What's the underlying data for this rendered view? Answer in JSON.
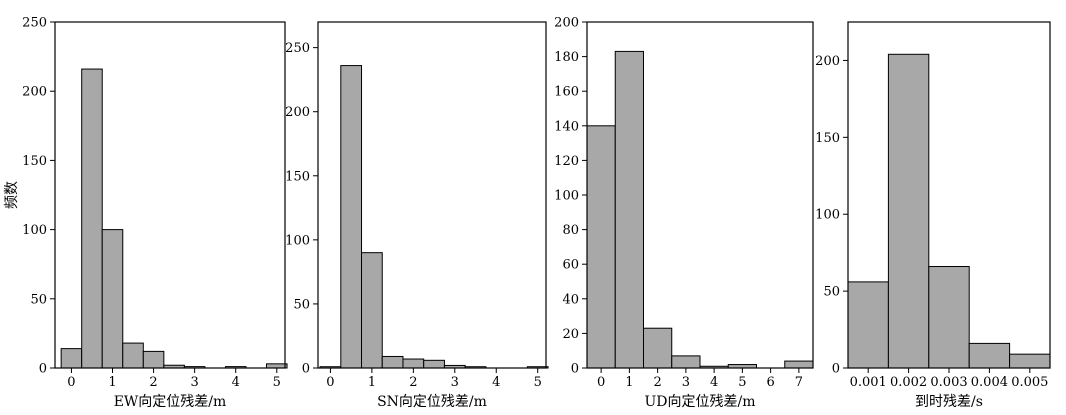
{
  "colors": {
    "bar_fill": "#a8a8a8",
    "bar_stroke": "#000000",
    "frame": "#000000"
  },
  "chart_data": [
    {
      "type": "bar",
      "title": "",
      "xlabel": "EW向定位残差/m",
      "ylabel": "频数",
      "xlim": [
        -0.4,
        5.2
      ],
      "ylim": [
        0,
        250
      ],
      "xticks": [
        0,
        1,
        2,
        3,
        4,
        5
      ],
      "yticks": [
        0,
        50,
        100,
        150,
        200,
        250
      ],
      "bin_width": 0.5,
      "bin_starts": [
        -0.25,
        0.25,
        0.75,
        1.25,
        1.75,
        2.25,
        2.75,
        3.25,
        3.75,
        4.25,
        4.75
      ],
      "values": [
        14,
        216,
        100,
        18,
        12,
        2,
        1,
        0,
        1,
        0,
        3
      ],
      "grid": false,
      "legend": "none"
    },
    {
      "type": "bar",
      "title": "",
      "xlabel": "SN向定位残差/m",
      "ylabel": "",
      "xlim": [
        -0.3,
        5.2
      ],
      "ylim": [
        0,
        270
      ],
      "xticks": [
        0,
        1,
        2,
        3,
        4,
        5
      ],
      "yticks": [
        0,
        50,
        100,
        150,
        200,
        250
      ],
      "bin_width": 0.5,
      "bin_starts": [
        -0.25,
        0.25,
        0.75,
        1.25,
        1.75,
        2.25,
        2.75,
        3.25,
        3.75,
        4.25,
        4.75
      ],
      "values": [
        1,
        236,
        90,
        9,
        7,
        6,
        2,
        1,
        0,
        0,
        1
      ],
      "grid": false,
      "legend": "none"
    },
    {
      "type": "bar",
      "title": "",
      "xlabel": "UD向定位残差/m",
      "ylabel": "",
      "xlim": [
        -0.5,
        7.5
      ],
      "ylim": [
        0,
        200
      ],
      "xticks": [
        0,
        1,
        2,
        3,
        4,
        5,
        6,
        7
      ],
      "yticks": [
        0,
        20,
        40,
        60,
        80,
        100,
        120,
        140,
        160,
        180,
        200
      ],
      "bin_width": 1,
      "bin_starts": [
        -0.5,
        0.5,
        1.5,
        2.5,
        3.5,
        4.5,
        5.5,
        6.5
      ],
      "values": [
        140,
        183,
        23,
        7,
        1,
        2,
        0,
        4
      ],
      "grid": false,
      "legend": "none"
    },
    {
      "type": "bar",
      "title": "",
      "xlabel": "到时残差/s",
      "ylabel": "",
      "xlim": [
        0.0005,
        0.0055
      ],
      "ylim": [
        0,
        225
      ],
      "xticks": [
        0.001,
        0.002,
        0.003,
        0.004,
        0.005
      ],
      "xtick_labels": [
        "0.001",
        "0.002",
        "0.003",
        "0.004",
        "0.005"
      ],
      "yticks": [
        0,
        50,
        100,
        150,
        200
      ],
      "bin_width": 0.001,
      "bin_starts": [
        0.0005,
        0.0015,
        0.0025,
        0.0035,
        0.0045
      ],
      "values": [
        56,
        204,
        66,
        16,
        9
      ],
      "grid": false,
      "legend": "none"
    }
  ]
}
